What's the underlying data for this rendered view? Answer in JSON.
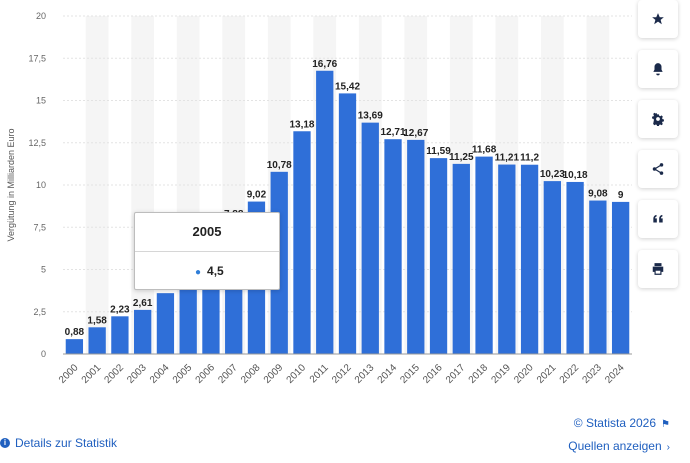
{
  "chart_data": {
    "type": "bar",
    "categories": [
      "2000",
      "2001",
      "2002",
      "2003",
      "2004",
      "2005",
      "2006",
      "2007",
      "2008",
      "2009",
      "2010",
      "2011",
      "2012",
      "2013",
      "2014",
      "2015",
      "2016",
      "2017",
      "2018",
      "2019",
      "2020",
      "2021",
      "2022",
      "2023",
      "2024"
    ],
    "values": [
      0.88,
      1.58,
      2.23,
      2.61,
      3.6,
      4.5,
      5.9,
      7.88,
      9.02,
      10.78,
      13.18,
      16.76,
      15.42,
      13.69,
      12.71,
      12.67,
      11.59,
      11.25,
      11.68,
      11.21,
      11.2,
      10.23,
      10.18,
      9.08,
      9
    ],
    "data_labels": [
      "0,88",
      "1,58",
      "2,23",
      "2,61",
      "",
      "",
      "",
      "7,88",
      "9,02",
      "10,78",
      "13,18",
      "16,76",
      "15,42",
      "13,69",
      "12,71",
      "12,67",
      "11,59",
      "11,25",
      "11,68",
      "11,21",
      "11,2",
      "10,23",
      "10,18",
      "9,08",
      "9"
    ],
    "ylabel": "Vergütung in Milliarden Euro",
    "ylim": [
      0,
      20
    ],
    "yticks": [
      0,
      2.5,
      5,
      7.5,
      10,
      12.5,
      15,
      17.5,
      20
    ],
    "ytick_labels": [
      "0",
      "2,5",
      "5",
      "7,5",
      "10",
      "12,5",
      "15",
      "17,5",
      "20"
    ],
    "grid": true,
    "bar_color": "#2f6fd8"
  },
  "tooltip": {
    "title": "2005",
    "value": "4,5",
    "dot_color": "#2f7ed8"
  },
  "sidebar": {
    "icons": [
      "star-icon",
      "bell-icon",
      "gear-icon",
      "share-icon",
      "quote-icon",
      "print-icon"
    ]
  },
  "footer": {
    "copyright": "© Statista 2026",
    "details_link": "Details zur Statistik",
    "sources_link": "Quellen anzeigen"
  }
}
